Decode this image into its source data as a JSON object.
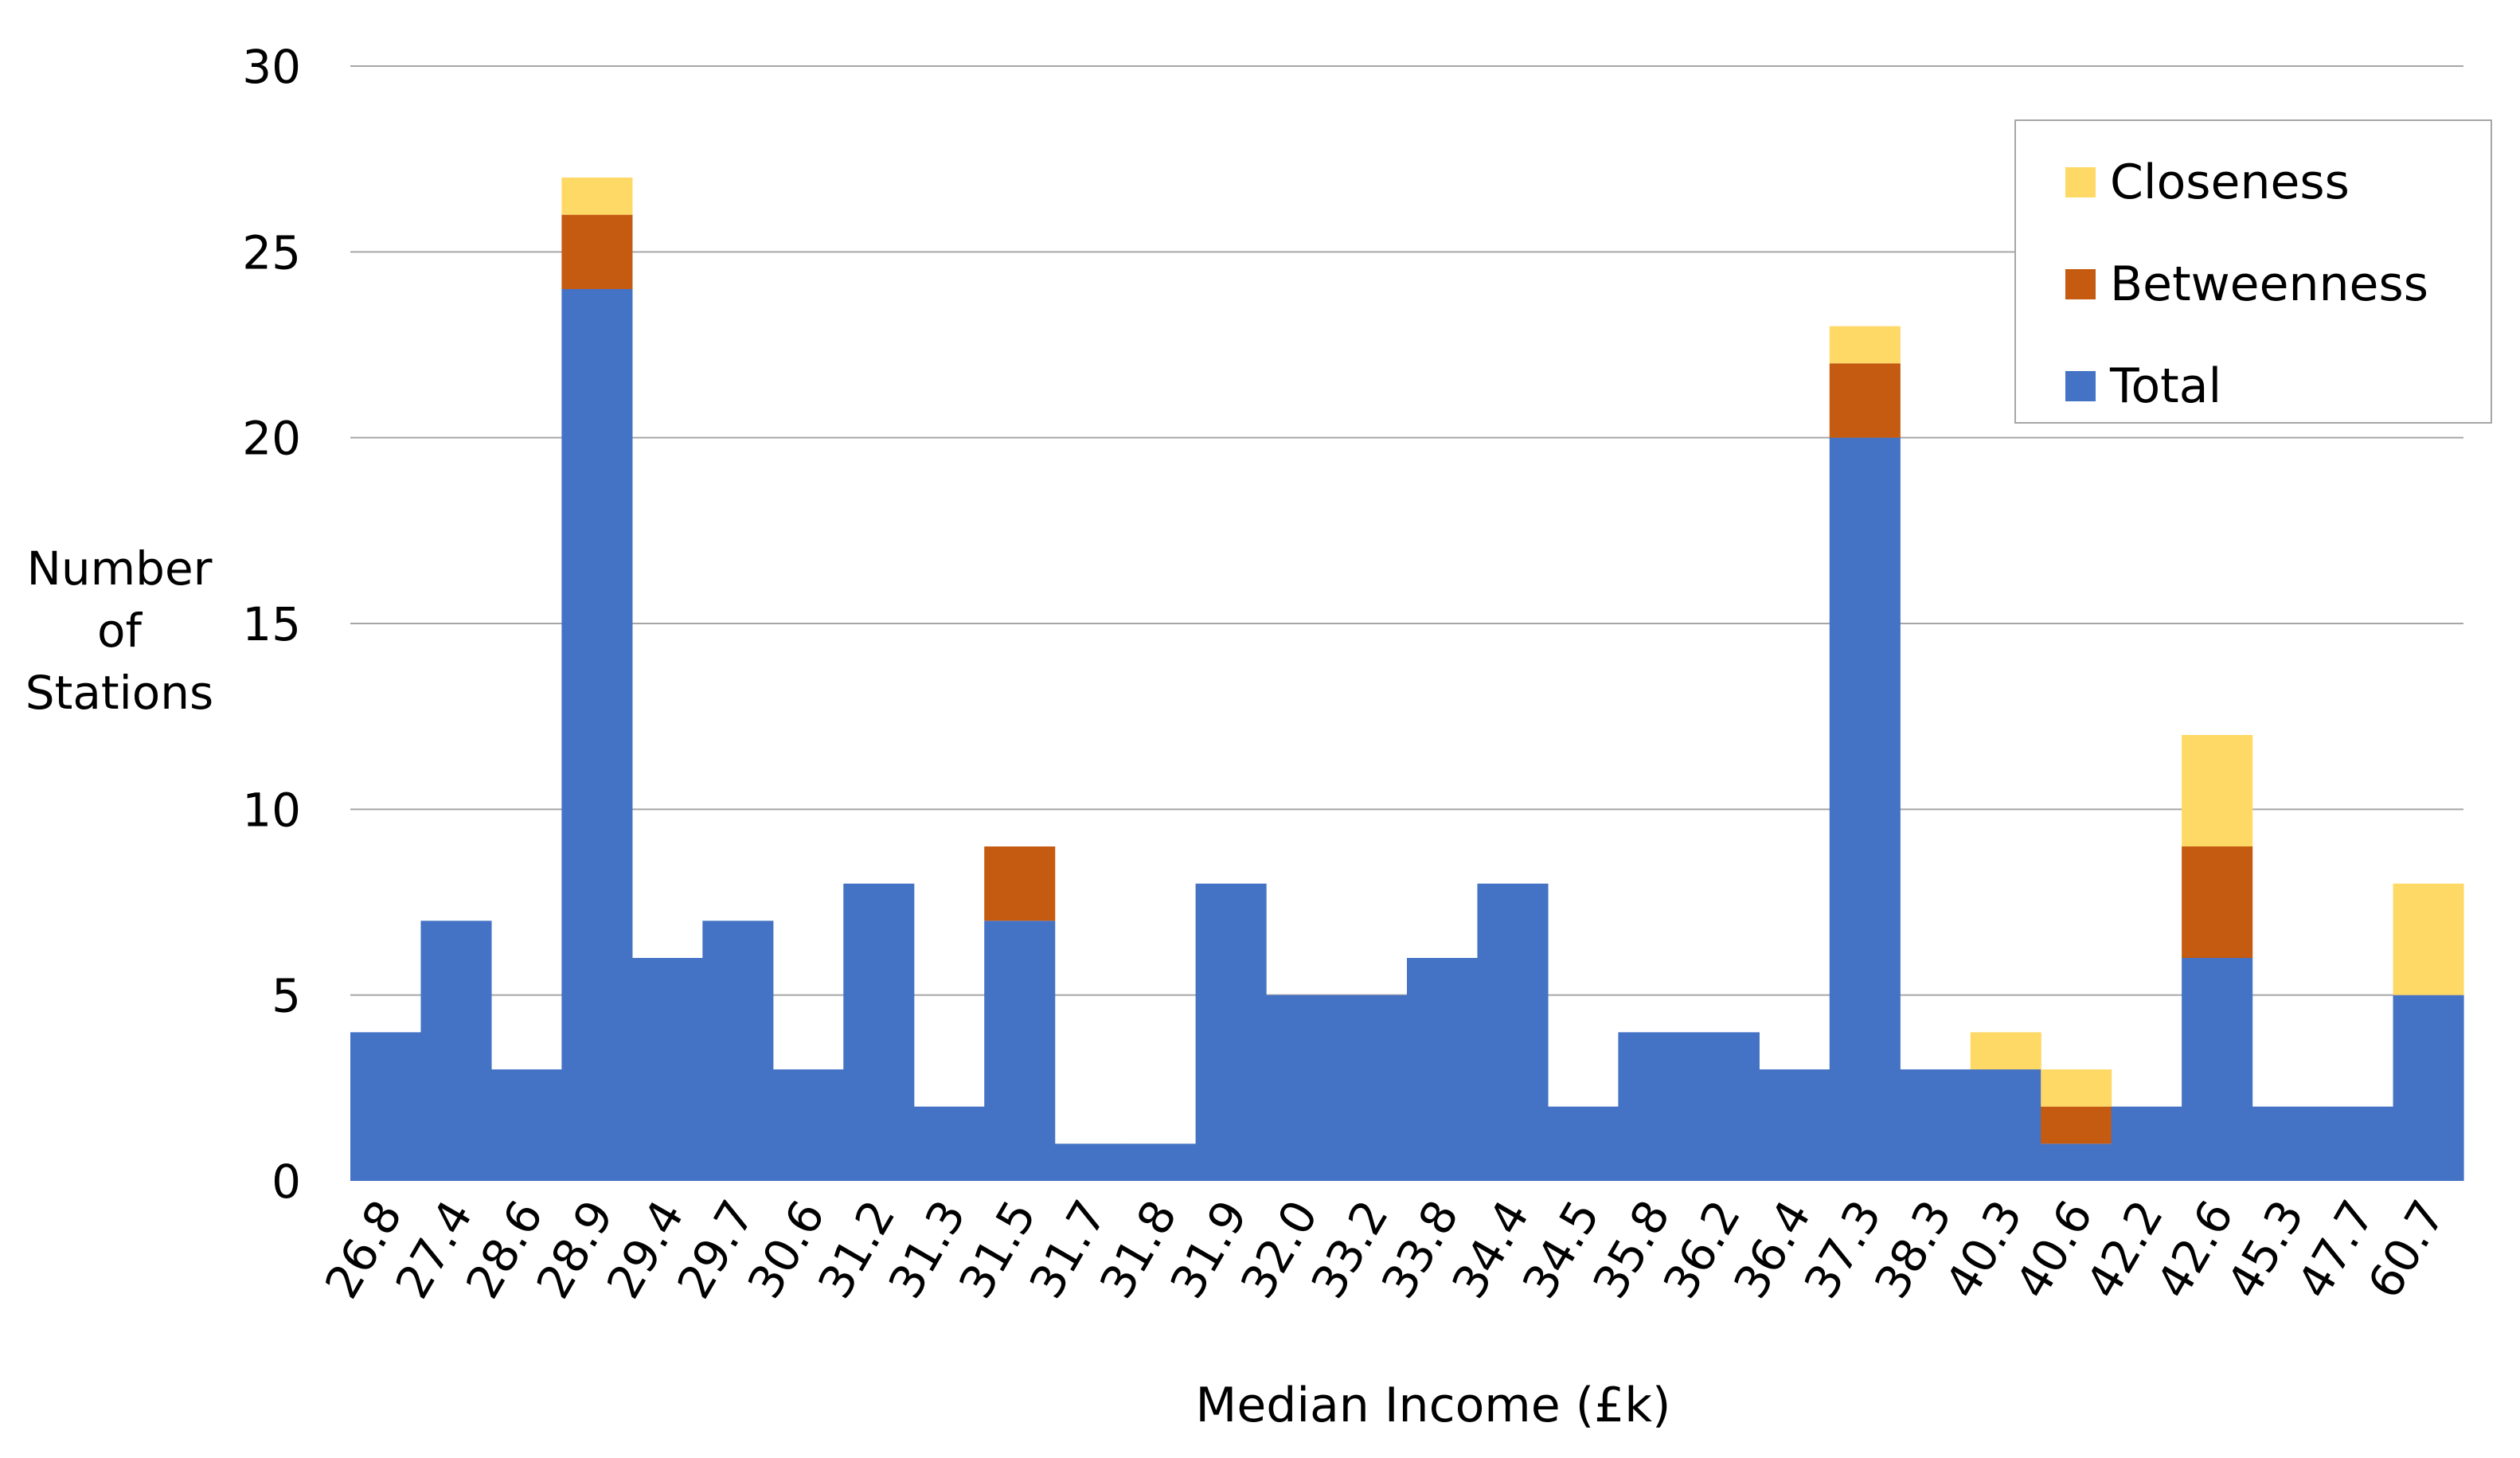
{
  "chart_data": {
    "type": "bar",
    "stacked": true,
    "xlabel": "Median Income (£k)",
    "ylabel_lines": [
      "Number",
      "of",
      "Stations"
    ],
    "ylim": [
      0,
      30
    ],
    "yticks": [
      0,
      5,
      10,
      15,
      20,
      25,
      30
    ],
    "grid": true,
    "legend_position": "top-right",
    "categories": [
      "26.8",
      "27.4",
      "28.6",
      "28.9",
      "29.4",
      "29.7",
      "30.6",
      "31.2",
      "31.3",
      "31.5",
      "31.7",
      "31.8",
      "31.9",
      "32.0",
      "33.2",
      "33.8",
      "34.4",
      "34.5",
      "35.8",
      "36.2",
      "36.4",
      "37.3",
      "38.3",
      "40.3",
      "40.6",
      "42.2",
      "42.6",
      "45.3",
      "47.7",
      "60.7"
    ],
    "series": [
      {
        "name": "Total",
        "color": "#4472C4",
        "values": [
          4,
          7,
          3,
          24,
          6,
          7,
          3,
          8,
          2,
          7,
          1,
          1,
          8,
          5,
          5,
          6,
          8,
          2,
          4,
          4,
          3,
          20,
          3,
          3,
          1,
          2,
          6,
          2,
          2,
          5
        ]
      },
      {
        "name": "Betweenness",
        "color": "#C55A11",
        "values": [
          0,
          0,
          0,
          2,
          0,
          0,
          0,
          0,
          0,
          2,
          0,
          0,
          0,
          0,
          0,
          0,
          0,
          0,
          0,
          0,
          0,
          2,
          0,
          0,
          1,
          0,
          3,
          0,
          0,
          0
        ]
      },
      {
        "name": "Closeness",
        "color": "#FFD966",
        "values": [
          0,
          0,
          0,
          1,
          0,
          0,
          0,
          0,
          0,
          0,
          0,
          0,
          0,
          0,
          0,
          0,
          0,
          0,
          0,
          0,
          0,
          1,
          0,
          1,
          1,
          0,
          3,
          0,
          0,
          3
        ]
      }
    ],
    "legend_order": [
      "Closeness",
      "Betweenness",
      "Total"
    ]
  }
}
